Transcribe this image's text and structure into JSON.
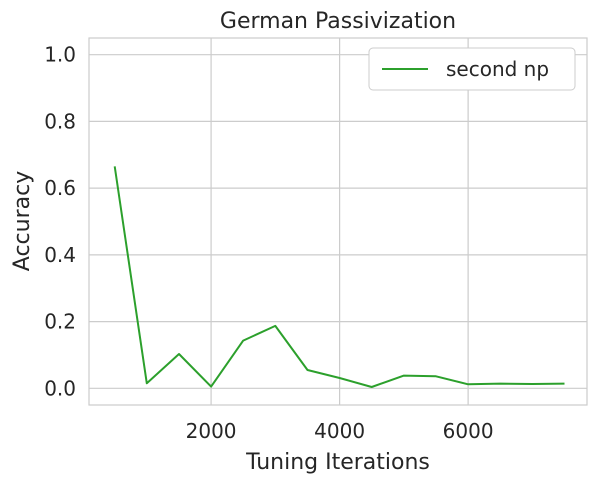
{
  "chart_data": {
    "type": "line",
    "title": "German Passivization",
    "xlabel": "Tuning Iterations",
    "ylabel": "Accuracy",
    "xlim": [
      100,
      7850
    ],
    "ylim": [
      -0.05,
      1.05
    ],
    "xticks": [
      2000,
      4000,
      6000
    ],
    "xtick_labels": [
      "2000",
      "4000",
      "6000"
    ],
    "yticks": [
      0.0,
      0.2,
      0.4,
      0.6,
      0.8,
      1.0
    ],
    "ytick_labels": [
      "0.0",
      "0.2",
      "0.4",
      "0.6",
      "0.8",
      "1.0"
    ],
    "grid": true,
    "legend_position": "top-right",
    "series": [
      {
        "name": "second np",
        "color": "#2ca02c",
        "x": [
          500,
          1000,
          1500,
          2000,
          2500,
          3000,
          3500,
          4000,
          4500,
          5000,
          5500,
          6000,
          6500,
          7000,
          7500
        ],
        "y": [
          0.665,
          0.015,
          0.103,
          0.005,
          0.143,
          0.187,
          0.055,
          0.031,
          0.004,
          0.038,
          0.036,
          0.012,
          0.014,
          0.013,
          0.014
        ]
      }
    ]
  }
}
